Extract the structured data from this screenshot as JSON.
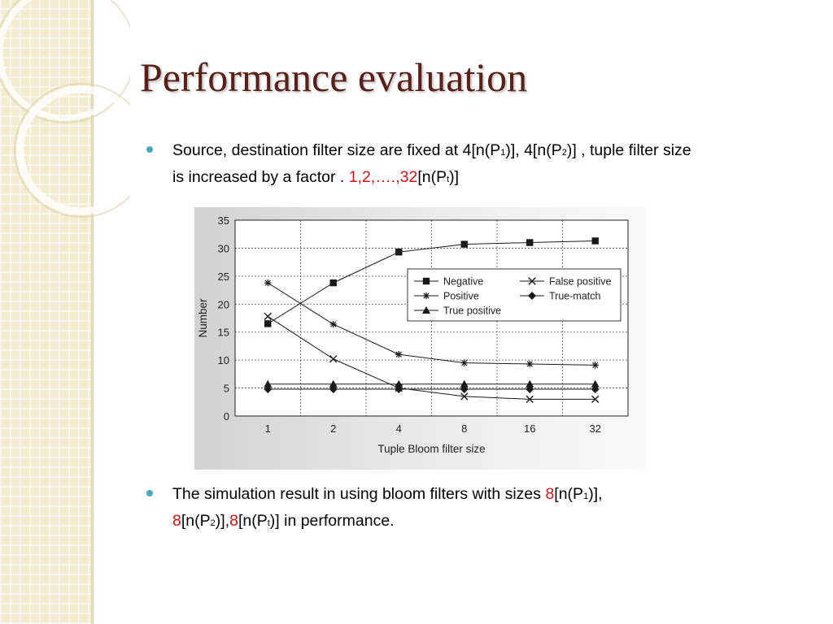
{
  "slide": {
    "title": "Performance evaluation",
    "bullet1": {
      "l1_prefix": "Source, destination filter size are fixed at  4[n(P",
      "l1_sub1": "1",
      "l1_mid1": ")], 4[n(P",
      "l1_sub2": "2",
      "l1_suffix": ")] , tuple filter size",
      "l2_prefix": "is increased by a factor . ",
      "l2_red": "1,2,….,32",
      "l2_mid": "[n(P",
      "l2_sub": "t",
      "l2_suffix": ")]"
    },
    "bullet2": {
      "l1_prefix": "The simulation result in using bloom filters with sizes ",
      "l1_red": "8",
      "l1_mid": "[n(P",
      "l1_sub": "1",
      "l1_suffix": ")],",
      "l2_red1": "8",
      "l2_a": "[n(P",
      "l2_sub1": "2",
      "l2_b": ")],",
      "l2_red2": "8",
      "l2_c": "[n(P",
      "l2_sub2": "t",
      "l2_suffix": ")] in performance."
    },
    "colors": {
      "title": "#5a1f16",
      "accent_red": "#e01010",
      "bullet_dot": "#4aa8c4",
      "sidebar": "#f3ecd0"
    }
  },
  "chart_data": {
    "type": "line",
    "xlabel": "Tuple Bloom filter size",
    "ylabel": "Number",
    "categories": [
      "1",
      "2",
      "4",
      "8",
      "16",
      "32"
    ],
    "ylim": [
      0,
      35
    ],
    "yticks": [
      "0",
      "5",
      "10",
      "15",
      "20",
      "25",
      "30",
      "35"
    ],
    "grid": true,
    "legend_position": "center-right",
    "series": [
      {
        "name": "Negative",
        "marker": "square",
        "values": [
          16.5,
          23.8,
          29.3,
          30.7,
          31.0,
          31.3
        ]
      },
      {
        "name": "False positive",
        "marker": "x",
        "values": [
          17.8,
          10.2,
          5.0,
          3.5,
          3.0,
          3.0
        ]
      },
      {
        "name": "Positive",
        "marker": "asterisk",
        "values": [
          23.8,
          16.4,
          11.0,
          9.5,
          9.3,
          9.1
        ]
      },
      {
        "name": "True-match",
        "marker": "diamond",
        "values": [
          4.8,
          4.8,
          4.8,
          4.8,
          4.8,
          4.8
        ]
      },
      {
        "name": "True positive",
        "marker": "triangle",
        "values": [
          5.7,
          5.7,
          5.7,
          5.7,
          5.7,
          5.7
        ]
      }
    ]
  }
}
